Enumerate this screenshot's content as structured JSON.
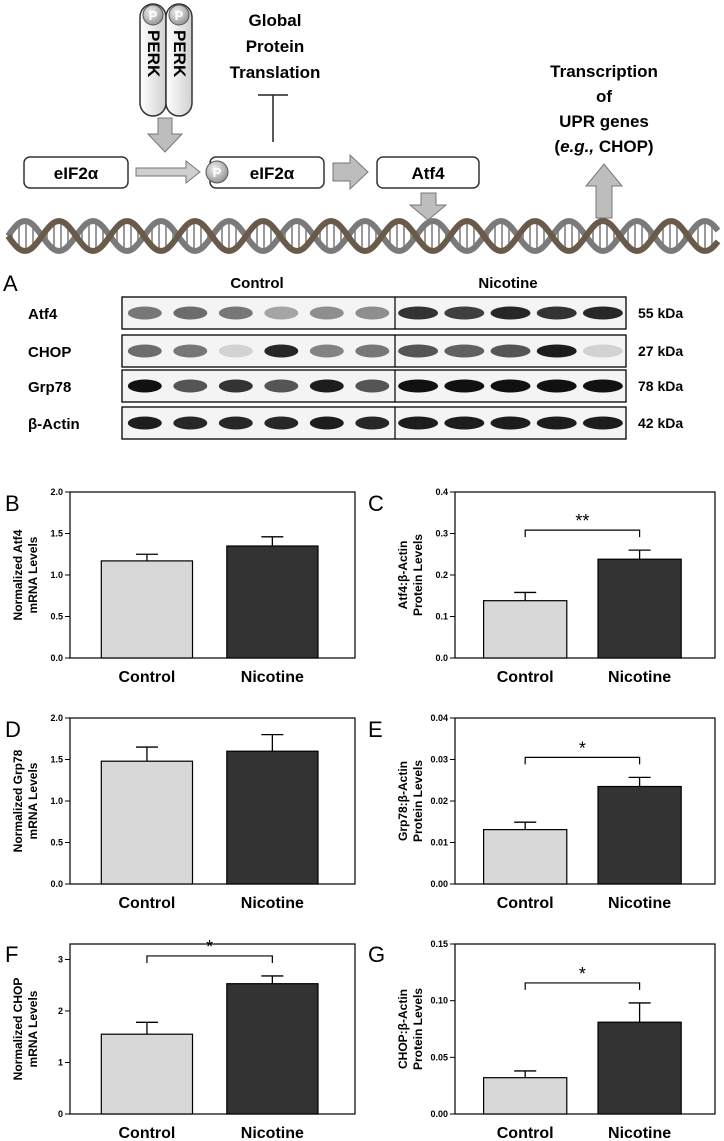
{
  "diagram": {
    "perk": [
      "PERK",
      "PERK"
    ],
    "phospho": "P",
    "global_translation": [
      "Global",
      "Protein",
      "Translation"
    ],
    "eif2a": "eIF2α",
    "eif2a_p": "eIF2α",
    "atf4": "Atf4",
    "transcription": [
      "Transcription",
      "of",
      "UPR genes"
    ],
    "transcription_eg_italic": "e.g.,",
    "transcription_eg_open": "(",
    "transcription_eg_rest": " CHOP)"
  },
  "blot": {
    "panel_label": "A",
    "groups": [
      "Control",
      "Nicotine"
    ],
    "rows": [
      {
        "label": "Atf4",
        "kda": "55 kDa"
      },
      {
        "label": "CHOP",
        "kda": "27 kDa"
      },
      {
        "label": "Grp78",
        "kda": "78 kDa"
      },
      {
        "label": "β-Actin",
        "kda": "42 kDa"
      }
    ],
    "lanes_per_group": [
      6,
      5
    ]
  },
  "chart_data": [
    {
      "id": "B",
      "type": "bar",
      "panel_label": "B",
      "categories": [
        "Control",
        "Nicotine"
      ],
      "values": [
        1.17,
        1.35
      ],
      "errors": [
        0.08,
        0.11
      ],
      "ylabel": [
        "Normalized Atf4",
        "mRNA Levels"
      ],
      "ylim": [
        0,
        2.0
      ],
      "yticks": [
        "0.0",
        "0.5",
        "1.0",
        "1.5",
        "2.0"
      ],
      "significance": ""
    },
    {
      "id": "C",
      "type": "bar",
      "panel_label": "C",
      "categories": [
        "Control",
        "Nicotine"
      ],
      "values": [
        0.138,
        0.238
      ],
      "errors": [
        0.02,
        0.022
      ],
      "ylabel": [
        "Atf4:β-Actin",
        "Protein Levels"
      ],
      "ylim": [
        0,
        0.4
      ],
      "yticks": [
        "0.0",
        "0.1",
        "0.2",
        "0.3",
        "0.4"
      ],
      "significance": "**"
    },
    {
      "id": "D",
      "type": "bar",
      "panel_label": "D",
      "categories": [
        "Control",
        "Nicotine"
      ],
      "values": [
        1.48,
        1.6
      ],
      "errors": [
        0.17,
        0.2
      ],
      "ylabel": [
        "Normalized Grp78",
        "mRNA Levels"
      ],
      "ylim": [
        0,
        2.0
      ],
      "yticks": [
        "0.0",
        "0.5",
        "1.0",
        "1.5",
        "2.0"
      ],
      "significance": ""
    },
    {
      "id": "E",
      "type": "bar",
      "panel_label": "E",
      "categories": [
        "Control",
        "Nicotine"
      ],
      "values": [
        0.0131,
        0.0235
      ],
      "errors": [
        0.0018,
        0.0022
      ],
      "ylabel": [
        "Grp78:β-Actin",
        "Protein Levels"
      ],
      "ylim": [
        0,
        0.04
      ],
      "yticks": [
        "0.00",
        "0.01",
        "0.02",
        "0.03",
        "0.04"
      ],
      "significance": "*"
    },
    {
      "id": "F",
      "type": "bar",
      "panel_label": "F",
      "categories": [
        "Control",
        "Nicotine"
      ],
      "values": [
        1.55,
        2.53
      ],
      "errors": [
        0.23,
        0.15
      ],
      "ylabel": [
        "Normalized CHOP",
        "mRNA Levels"
      ],
      "ylim": [
        0,
        3.3
      ],
      "yticks": [
        "0",
        "1",
        "2",
        "3"
      ],
      "ytick_values": [
        0,
        1,
        2,
        3
      ],
      "significance": "*"
    },
    {
      "id": "G",
      "type": "bar",
      "panel_label": "G",
      "categories": [
        "Control",
        "Nicotine"
      ],
      "values": [
        0.032,
        0.081
      ],
      "errors": [
        0.006,
        0.017
      ],
      "ylabel": [
        "CHOP:β-Actin",
        "Protein Levels"
      ],
      "ylim": [
        0,
        0.15
      ],
      "yticks": [
        "0.00",
        "0.05",
        "0.10",
        "0.15"
      ],
      "significance": "*"
    }
  ],
  "colors": {
    "control": "#d8d8d8",
    "nicotine": "#333333",
    "arrow": "#bdbdbd"
  }
}
